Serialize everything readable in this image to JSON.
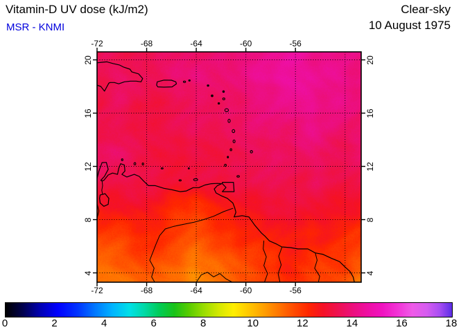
{
  "header": {
    "title": "Vitamin-D UV dose (kJ/m2)",
    "source": "MSR - KNMI",
    "condition": "Clear-sky",
    "date": "10 August 1975"
  },
  "colors": {
    "source_text": "#0000dd",
    "frame": "#000000",
    "background": "#ffffff"
  },
  "axes": {
    "lon_ticks": [
      -72,
      -68,
      -64,
      -60,
      -56
    ],
    "lat_ticks": [
      20,
      16,
      12,
      8,
      4
    ],
    "grid_lons": [
      -68,
      -64,
      -60,
      -56,
      -52
    ],
    "grid_lats": [
      20,
      16,
      12,
      8,
      4
    ]
  },
  "chart_data": {
    "type": "heatmap",
    "title": "Vitamin-D UV dose (kJ/m2)",
    "subtitle": "MSR - KNMI",
    "annotation_right": [
      "Clear-sky",
      "10 August 1975"
    ],
    "units": "kJ/m2",
    "region": "Caribbean / northern South America",
    "lon_range": [
      -72,
      -50.7
    ],
    "lat_range": [
      3.3,
      20.6
    ],
    "grid_lons": [
      -72.0,
      -70.06,
      -68.13,
      -66.19,
      -64.25,
      -62.32,
      -60.38,
      -58.44,
      -56.51,
      -54.57,
      -52.64,
      -50.7
    ],
    "grid_lats": [
      20.6,
      18.68,
      16.76,
      14.83,
      12.91,
      10.99,
      9.07,
      7.14,
      5.22,
      3.3
    ],
    "values": [
      [
        13.3,
        13.4,
        13.5,
        13.6,
        13.7,
        13.8,
        13.9,
        14.3,
        14.5,
        14.3,
        14.1,
        14.2
      ],
      [
        13.4,
        13.6,
        13.5,
        13.6,
        13.8,
        13.7,
        14.0,
        14.4,
        14.6,
        14.4,
        14.2,
        14.0
      ],
      [
        13.3,
        13.4,
        13.3,
        13.4,
        13.5,
        13.6,
        13.7,
        14.0,
        14.2,
        14.3,
        14.1,
        13.8
      ],
      [
        13.4,
        13.3,
        13.2,
        13.3,
        13.4,
        13.4,
        13.5,
        13.7,
        13.9,
        14.0,
        13.8,
        13.7
      ],
      [
        13.8,
        13.6,
        13.3,
        13.2,
        13.3,
        13.3,
        13.4,
        13.5,
        13.6,
        13.6,
        13.5,
        13.5
      ],
      [
        13.5,
        13.4,
        13.2,
        13.1,
        13.2,
        13.2,
        13.3,
        13.3,
        13.4,
        13.4,
        13.3,
        13.3
      ],
      [
        12.6,
        12.9,
        12.7,
        12.3,
        12.1,
        12.5,
        12.8,
        13.0,
        13.1,
        13.0,
        12.9,
        12.8
      ],
      [
        11.8,
        12.1,
        12.3,
        11.9,
        11.6,
        12.0,
        12.3,
        12.5,
        12.6,
        12.5,
        12.4,
        12.2
      ],
      [
        11.2,
        11.5,
        11.9,
        11.6,
        11.1,
        11.4,
        11.9,
        12.1,
        12.3,
        12.2,
        12.0,
        11.7
      ],
      [
        10.8,
        11.0,
        11.4,
        11.1,
        10.6,
        10.9,
        11.5,
        11.8,
        12.1,
        12.0,
        11.6,
        11.1
      ]
    ],
    "colorbar": {
      "min": 0,
      "max": 18,
      "tick_labels": [
        0,
        2,
        4,
        6,
        8,
        10,
        12,
        14,
        16,
        18
      ],
      "stops": [
        [
          0.0,
          "#000000"
        ],
        [
          0.7,
          "#00004d"
        ],
        [
          1.4,
          "#0000b3"
        ],
        [
          2.1,
          "#0000ff"
        ],
        [
          2.9,
          "#0033ff"
        ],
        [
          3.6,
          "#0077ff"
        ],
        [
          4.3,
          "#00b3ff"
        ],
        [
          5.0,
          "#00e0e6"
        ],
        [
          5.6,
          "#00d9a6"
        ],
        [
          6.2,
          "#00cc59"
        ],
        [
          6.8,
          "#19c219"
        ],
        [
          7.4,
          "#59cc00"
        ],
        [
          8.0,
          "#99dd00"
        ],
        [
          8.6,
          "#d4e800"
        ],
        [
          9.2,
          "#ffee00"
        ],
        [
          9.8,
          "#ffc800"
        ],
        [
          10.4,
          "#ffa000"
        ],
        [
          11.0,
          "#ff7700"
        ],
        [
          11.6,
          "#ff4d00"
        ],
        [
          12.2,
          "#ff2600"
        ],
        [
          12.8,
          "#f51126"
        ],
        [
          13.4,
          "#ee1150"
        ],
        [
          14.0,
          "#ec0f7d"
        ],
        [
          14.6,
          "#ee0fa3"
        ],
        [
          15.2,
          "#f013c0"
        ],
        [
          15.8,
          "#f233d6"
        ],
        [
          16.4,
          "#ef5be8"
        ],
        [
          17.0,
          "#d55cf0"
        ],
        [
          17.5,
          "#a94ef2"
        ],
        [
          18.0,
          "#5c2ee6"
        ]
      ]
    }
  },
  "geo": {
    "coastlines": [
      {
        "name": "hispaniola",
        "closed": false,
        "points": [
          [
            -72,
            19.78
          ],
          [
            -71.6,
            19.82
          ],
          [
            -71.2,
            19.85
          ],
          [
            -70.7,
            19.72
          ],
          [
            -70.2,
            19.62
          ],
          [
            -69.85,
            19.45
          ],
          [
            -69.35,
            19.3
          ],
          [
            -69.2,
            19.1
          ],
          [
            -68.65,
            18.95
          ],
          [
            -68.32,
            18.6
          ],
          [
            -68.45,
            18.35
          ],
          [
            -68.85,
            18.4
          ],
          [
            -69.3,
            18.4
          ],
          [
            -69.8,
            18.35
          ],
          [
            -70.25,
            18.2
          ],
          [
            -70.6,
            18.3
          ],
          [
            -70.95,
            18.3
          ],
          [
            -71.05,
            18.25
          ],
          [
            -71.4,
            17.65
          ],
          [
            -71.7,
            18.0
          ],
          [
            -72,
            18.1
          ]
        ]
      },
      {
        "name": "puerto-rico",
        "closed": true,
        "points": [
          [
            -67.15,
            18.35
          ],
          [
            -66.6,
            18.48
          ],
          [
            -66.0,
            18.47
          ],
          [
            -65.65,
            18.35
          ],
          [
            -65.6,
            18.2
          ],
          [
            -65.95,
            17.97
          ],
          [
            -66.6,
            17.95
          ],
          [
            -67.1,
            17.97
          ],
          [
            -67.2,
            18.1
          ]
        ]
      },
      {
        "name": "trinidad",
        "closed": true,
        "points": [
          [
            -61.9,
            10.8
          ],
          [
            -61.0,
            10.8
          ],
          [
            -60.95,
            10.1
          ],
          [
            -61.9,
            10.1
          ],
          [
            -61.6,
            10.42
          ],
          [
            -61.9,
            10.7
          ]
        ]
      },
      {
        "name": "lake-maracaibo",
        "closed": true,
        "points": [
          [
            -71.75,
            9.85
          ],
          [
            -71.35,
            9.95
          ],
          [
            -71.05,
            9.6
          ],
          [
            -71.1,
            9.15
          ],
          [
            -71.45,
            9.0
          ],
          [
            -71.75,
            9.25
          ],
          [
            -71.8,
            9.6
          ]
        ]
      },
      {
        "name": "south-america-coast",
        "closed": false,
        "points": [
          [
            -72,
            11.1
          ],
          [
            -71.85,
            11.65
          ],
          [
            -71.6,
            12.28
          ],
          [
            -71.25,
            12.3
          ],
          [
            -71.1,
            11.78
          ],
          [
            -71.4,
            11.25
          ],
          [
            -71.7,
            10.95
          ],
          [
            -71.6,
            10.9
          ],
          [
            -71.45,
            10.95
          ],
          [
            -71.1,
            11.35
          ],
          [
            -70.75,
            11.5
          ],
          [
            -70.35,
            11.4
          ],
          [
            -70.25,
            11.85
          ],
          [
            -70.1,
            12.2
          ],
          [
            -69.8,
            12.1
          ],
          [
            -69.75,
            11.65
          ],
          [
            -70.0,
            11.4
          ],
          [
            -69.6,
            11.2
          ],
          [
            -69.0,
            11.4
          ],
          [
            -68.6,
            11.25
          ],
          [
            -68.25,
            10.9
          ],
          [
            -67.85,
            10.55
          ],
          [
            -67.3,
            10.55
          ],
          [
            -66.6,
            10.35
          ],
          [
            -66.0,
            10.25
          ],
          [
            -65.3,
            10.1
          ],
          [
            -64.8,
            10.15
          ],
          [
            -64.25,
            10.4
          ],
          [
            -63.8,
            10.4
          ],
          [
            -63.3,
            10.6
          ],
          [
            -62.8,
            10.7
          ],
          [
            -62.3,
            10.72
          ],
          [
            -61.95,
            10.7
          ],
          [
            -62.3,
            10.55
          ],
          [
            -62.55,
            10.3
          ],
          [
            -62.4,
            10.0
          ],
          [
            -62.0,
            9.8
          ],
          [
            -61.5,
            9.6
          ],
          [
            -61.05,
            9.25
          ],
          [
            -60.9,
            8.9
          ],
          [
            -60.8,
            8.55
          ],
          [
            -60.95,
            8.2
          ],
          [
            -60.3,
            8.3
          ],
          [
            -59.75,
            8.2
          ],
          [
            -59.3,
            7.6
          ],
          [
            -58.75,
            7.0
          ],
          [
            -58.45,
            6.75
          ],
          [
            -58.1,
            6.4
          ],
          [
            -57.5,
            6.15
          ],
          [
            -57.1,
            5.95
          ],
          [
            -56.4,
            5.9
          ],
          [
            -55.8,
            5.8
          ],
          [
            -55.0,
            5.8
          ],
          [
            -54.4,
            5.5
          ],
          [
            -53.8,
            5.4
          ],
          [
            -53.1,
            5.1
          ],
          [
            -52.45,
            4.85
          ],
          [
            -51.95,
            4.4
          ],
          [
            -51.6,
            4.1
          ],
          [
            -51.35,
            3.7
          ],
          [
            -51.25,
            3.3
          ]
        ]
      }
    ],
    "islands": [
      {
        "name": "virgin-islands",
        "lon": -64.95,
        "lat": 18.35,
        "rx": 1.6,
        "ry": 1.1
      },
      {
        "name": "anegada",
        "lon": -64.55,
        "lat": 18.45,
        "rx": 1.1,
        "ry": 0.9
      },
      {
        "name": "st-martin",
        "lon": -63.05,
        "lat": 18.07,
        "rx": 1.2,
        "ry": 1.0
      },
      {
        "name": "barbuda",
        "lon": -61.8,
        "lat": 17.62,
        "rx": 1.2,
        "ry": 1.2
      },
      {
        "name": "st-kitts",
        "lon": -62.72,
        "lat": 17.3,
        "rx": 1.3,
        "ry": 1.3
      },
      {
        "name": "antigua",
        "lon": -61.78,
        "lat": 17.07,
        "rx": 1.6,
        "ry": 1.4
      },
      {
        "name": "montserrat",
        "lon": -62.18,
        "lat": 16.73,
        "rx": 1.1,
        "ry": 1.1
      },
      {
        "name": "guadeloupe",
        "lon": -61.55,
        "lat": 16.22,
        "rx": 2.6,
        "ry": 2.2
      },
      {
        "name": "dominica",
        "lon": -61.35,
        "lat": 15.42,
        "rx": 1.6,
        "ry": 2.4
      },
      {
        "name": "martinique",
        "lon": -61.0,
        "lat": 14.65,
        "rx": 1.9,
        "ry": 2.2
      },
      {
        "name": "st-lucia",
        "lon": -60.95,
        "lat": 13.88,
        "rx": 1.5,
        "ry": 2.0
      },
      {
        "name": "st-vincent",
        "lon": -61.2,
        "lat": 13.25,
        "rx": 1.2,
        "ry": 1.5
      },
      {
        "name": "grenadines",
        "lon": -61.45,
        "lat": 12.7,
        "rx": 0.9,
        "ry": 1.2
      },
      {
        "name": "grenada",
        "lon": -61.65,
        "lat": 12.08,
        "rx": 1.4,
        "ry": 1.6
      },
      {
        "name": "barbados",
        "lon": -59.55,
        "lat": 13.1,
        "rx": 1.6,
        "ry": 1.8
      },
      {
        "name": "tobago",
        "lon": -60.62,
        "lat": 11.25,
        "rx": 1.8,
        "ry": 1.2
      },
      {
        "name": "margarita",
        "lon": -64.05,
        "lat": 11.0,
        "rx": 3.0,
        "ry": 1.5
      },
      {
        "name": "los-roques",
        "lon": -66.75,
        "lat": 11.85,
        "rx": 1.5,
        "ry": 0.9
      },
      {
        "name": "la-tortuga",
        "lon": -65.3,
        "lat": 10.95,
        "rx": 1.6,
        "ry": 0.9
      },
      {
        "name": "la-blanquilla",
        "lon": -64.6,
        "lat": 11.85,
        "rx": 0.9,
        "ry": 0.9
      },
      {
        "name": "aruba",
        "lon": -69.97,
        "lat": 12.5,
        "rx": 1.1,
        "ry": 1.4
      },
      {
        "name": "curacao",
        "lon": -68.95,
        "lat": 12.2,
        "rx": 1.3,
        "ry": 1.8
      },
      {
        "name": "bonaire",
        "lon": -68.3,
        "lat": 12.18,
        "rx": 1.1,
        "ry": 1.5
      }
    ],
    "rivers": [
      {
        "name": "maracaibo-strait",
        "points": [
          [
            -71.6,
            10.93
          ],
          [
            -71.55,
            10.55
          ],
          [
            -71.62,
            10.2
          ],
          [
            -71.55,
            9.9
          ]
        ]
      },
      {
        "name": "orinoco",
        "points": [
          [
            -61.05,
            8.85
          ],
          [
            -61.8,
            8.6
          ],
          [
            -62.6,
            8.25
          ],
          [
            -63.4,
            8.0
          ],
          [
            -64.2,
            7.8
          ],
          [
            -65.0,
            7.65
          ],
          [
            -65.8,
            7.5
          ],
          [
            -66.5,
            7.3
          ],
          [
            -66.95,
            6.8
          ],
          [
            -67.25,
            6.15
          ],
          [
            -67.5,
            5.55
          ],
          [
            -67.75,
            4.95
          ],
          [
            -67.4,
            4.35
          ],
          [
            -67.6,
            3.7
          ],
          [
            -67.35,
            3.3
          ]
        ]
      },
      {
        "name": "essequibo",
        "points": [
          [
            -58.55,
            6.4
          ],
          [
            -58.6,
            5.8
          ],
          [
            -58.35,
            5.2
          ],
          [
            -58.55,
            4.55
          ],
          [
            -58.25,
            3.95
          ],
          [
            -58.5,
            3.3
          ]
        ]
      },
      {
        "name": "courantyne",
        "points": [
          [
            -57.1,
            5.9
          ],
          [
            -57.35,
            5.25
          ],
          [
            -57.15,
            4.6
          ],
          [
            -57.4,
            3.95
          ],
          [
            -57.25,
            3.3
          ]
        ]
      },
      {
        "name": "maroni",
        "points": [
          [
            -54.4,
            5.5
          ],
          [
            -54.25,
            4.95
          ],
          [
            -54.45,
            4.35
          ],
          [
            -54.05,
            3.75
          ],
          [
            -54.15,
            3.3
          ]
        ]
      },
      {
        "name": "colombia-venezuela-border",
        "points": [
          [
            -72,
            9.2
          ],
          [
            -71.85,
            8.65
          ],
          [
            -72,
            8.1
          ]
        ]
      },
      {
        "name": "venezuela-brazil-border",
        "points": [
          [
            -64.0,
            3.3
          ],
          [
            -63.6,
            3.85
          ],
          [
            -63.1,
            4.05
          ],
          [
            -62.6,
            3.7
          ],
          [
            -62.1,
            3.95
          ],
          [
            -61.6,
            3.55
          ],
          [
            -61.1,
            3.3
          ]
        ]
      }
    ]
  }
}
